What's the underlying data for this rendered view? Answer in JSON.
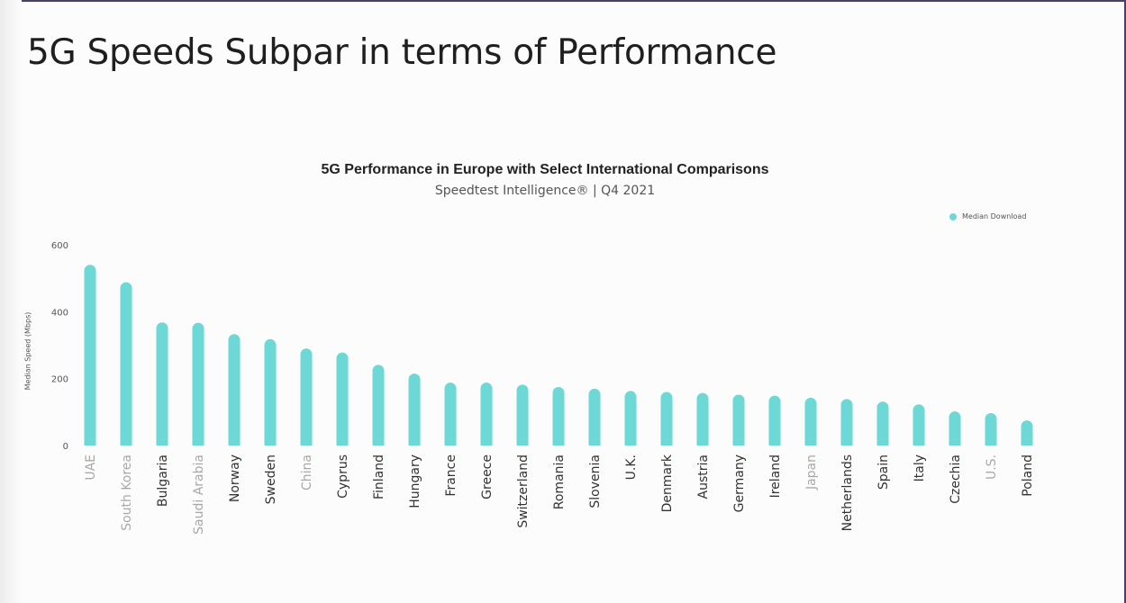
{
  "slide": {
    "title": "5G Speeds Subpar in terms of Performance"
  },
  "colors": {
    "bar": "#6dd8d5",
    "label_europe": "#333333",
    "label_international": "#a8a8a8"
  },
  "chart_data": {
    "type": "bar",
    "title": "5G Performance in Europe with Select International Comparisons",
    "subtitle": "Speedtest Intelligence® | Q4 2021",
    "xlabel": "",
    "ylabel": "Median Speed (Mbps)",
    "ylim": [
      0,
      600
    ],
    "yticks": [
      0,
      200,
      400,
      600
    ],
    "grid": false,
    "legend_position": "top-right",
    "series": [
      {
        "name": "Median Download",
        "values": [
          540,
          488,
          368,
          367,
          333,
          318,
          290,
          278,
          241,
          215,
          188,
          188,
          182,
          175,
          170,
          163,
          160,
          157,
          152,
          149,
          143,
          139,
          131,
          123,
          102,
          97,
          75
        ]
      }
    ],
    "categories": [
      "UAE",
      "South Korea",
      "Bulgaria",
      "Saudi Arabia",
      "Norway",
      "Sweden",
      "China",
      "Cyprus",
      "Finland",
      "Hungary",
      "France",
      "Greece",
      "Switzerland",
      "Romania",
      "Slovenia",
      "U.K.",
      "Denmark",
      "Austria",
      "Germany",
      "Ireland",
      "Japan",
      "Netherlands",
      "Spain",
      "Italy",
      "Czechia",
      "U.S.",
      "Poland"
    ],
    "international": [
      "UAE",
      "South Korea",
      "Saudi Arabia",
      "China",
      "Japan",
      "U.S."
    ]
  }
}
